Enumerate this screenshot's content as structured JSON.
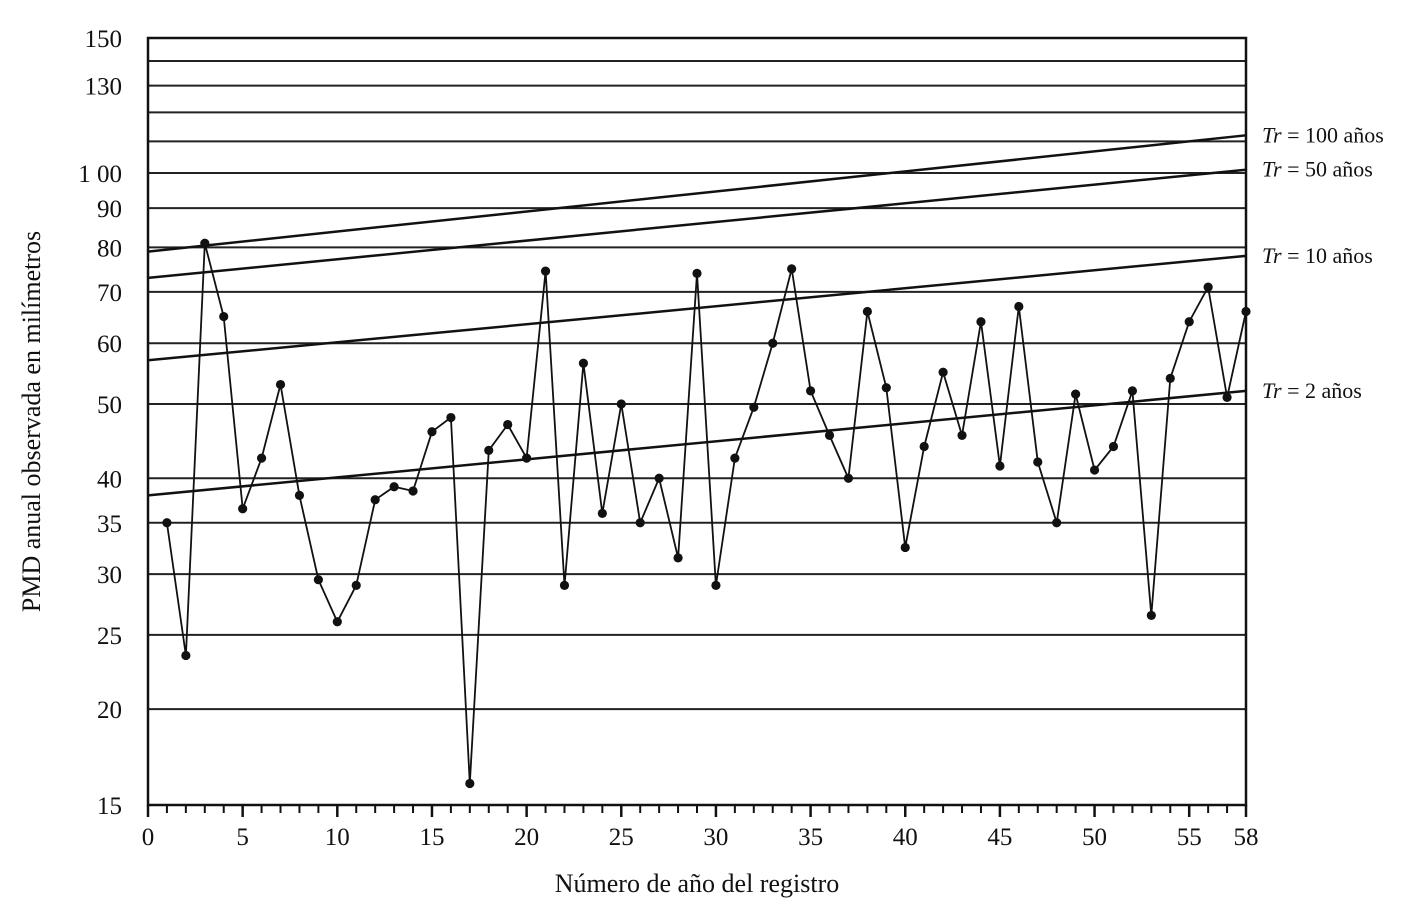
{
  "chart_data": {
    "type": "line",
    "xlabel": "Número de año del registro",
    "ylabel": "PMD anual observada en milímetros",
    "xlim": [
      0,
      58
    ],
    "ylim": [
      15,
      150
    ],
    "yscale": "log",
    "x_ticks": [
      "0",
      "5",
      "10",
      "15",
      "20",
      "25",
      "30",
      "35",
      "40",
      "45",
      "50",
      "55",
      "58"
    ],
    "x_tick_values": [
      0,
      5,
      10,
      15,
      20,
      25,
      30,
      35,
      40,
      45,
      50,
      55,
      58
    ],
    "y_ticks": [
      "150",
      "130",
      "1 00",
      "90",
      "80",
      "70",
      "60",
      "50",
      "40",
      "35",
      "30",
      "25",
      "20",
      "15"
    ],
    "y_tick_values": [
      150,
      130,
      100,
      90,
      80,
      70,
      60,
      50,
      40,
      35,
      30,
      25,
      20,
      15
    ],
    "y_gridlines": [
      20,
      25,
      30,
      35,
      40,
      50,
      60,
      70,
      80,
      90,
      100,
      110,
      120,
      130,
      140,
      150
    ],
    "grid": "horizontal",
    "series": {
      "x": [
        1,
        2,
        3,
        4,
        5,
        6,
        7,
        8,
        9,
        10,
        11,
        12,
        13,
        14,
        15,
        16,
        17,
        18,
        19,
        20,
        21,
        22,
        23,
        24,
        25,
        26,
        27,
        28,
        29,
        30,
        31,
        32,
        33,
        34,
        35,
        36,
        37,
        38,
        39,
        40,
        41,
        42,
        43,
        44,
        45,
        46,
        47,
        48,
        49,
        50,
        51,
        52,
        53,
        54,
        55,
        56,
        57,
        58
      ],
      "y": [
        35,
        23.5,
        81,
        65,
        36.5,
        42.5,
        53,
        38,
        29.5,
        26,
        29,
        37.5,
        39,
        38.5,
        46,
        48,
        16,
        43.5,
        47,
        42.5,
        74.5,
        29,
        56.5,
        36,
        50,
        35,
        40,
        31.5,
        74,
        29,
        42.5,
        49.5,
        60,
        75,
        52,
        45.5,
        40,
        66,
        52.5,
        32.5,
        44,
        55,
        45.5,
        64,
        41.5,
        67,
        42,
        35,
        51.5,
        41,
        44,
        52,
        26.5,
        54,
        64,
        71,
        51,
        66
      ]
    },
    "trend_lines": [
      {
        "label_var": "Tr",
        "label_rest": " = 100 años",
        "y0": 79,
        "y58": 112
      },
      {
        "label_var": "Tr",
        "label_rest": " = 50 años",
        "y0": 73,
        "y58": 101
      },
      {
        "label_var": "Tr",
        "label_rest": " = 10 años",
        "y0": 57,
        "y58": 78
      },
      {
        "label_var": "Tr",
        "label_rest": " = 2 años",
        "y0": 38,
        "y58": 52
      }
    ]
  }
}
